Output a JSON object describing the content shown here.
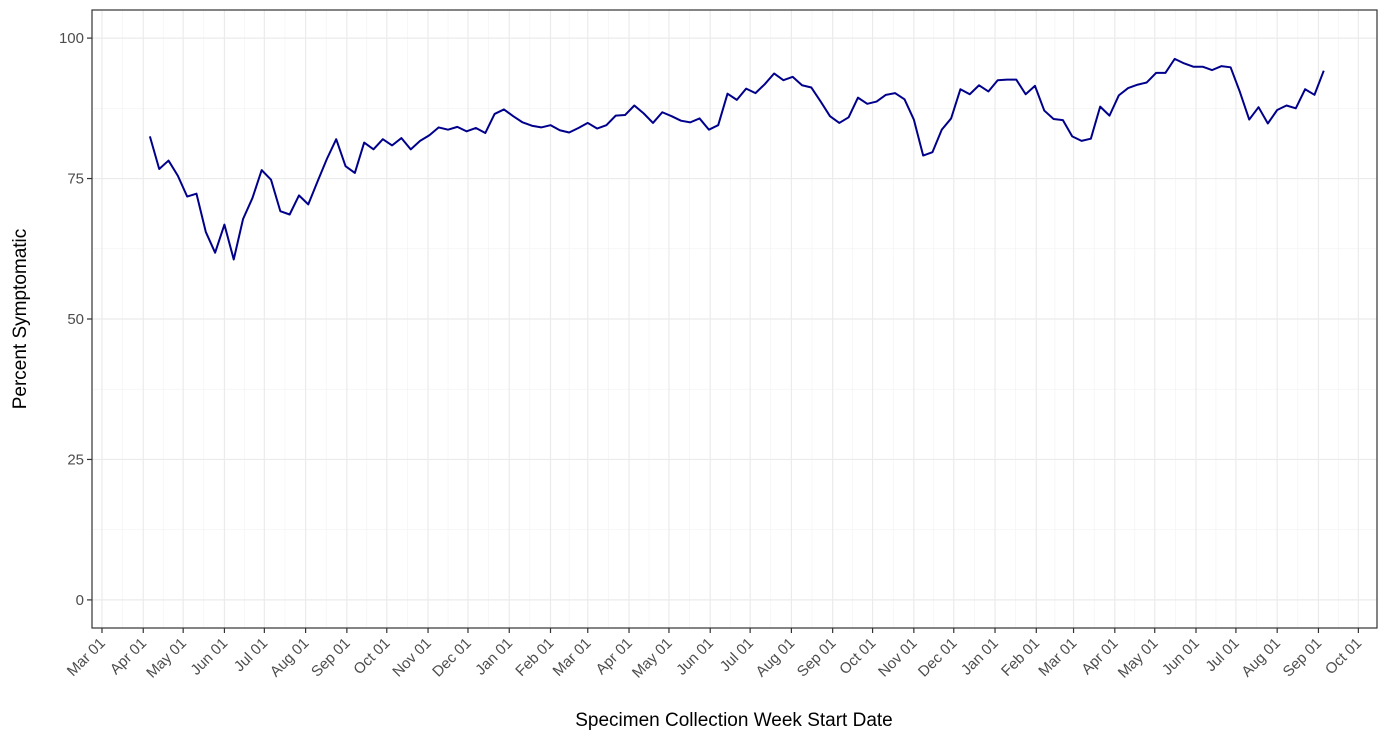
{
  "chart_data": {
    "type": "line",
    "x_label": "Specimen Collection Week Start Date",
    "y_label": "Percent Symptomatic",
    "xlim": [
      -7.5,
      958
    ],
    "ylim": [
      -5,
      105
    ],
    "xticks": [
      {
        "value": 0,
        "label": "Mar 01"
      },
      {
        "value": 31,
        "label": "Apr 01"
      },
      {
        "value": 61,
        "label": "May 01"
      },
      {
        "value": 92,
        "label": "Jun 01"
      },
      {
        "value": 122,
        "label": "Jul 01"
      },
      {
        "value": 153,
        "label": "Aug 01"
      },
      {
        "value": 184,
        "label": "Sep 01"
      },
      {
        "value": 214,
        "label": "Oct 01"
      },
      {
        "value": 245,
        "label": "Nov 01"
      },
      {
        "value": 275,
        "label": "Dec 01"
      },
      {
        "value": 306,
        "label": "Jan 01"
      },
      {
        "value": 337,
        "label": "Feb 01"
      },
      {
        "value": 365,
        "label": "Mar 01"
      },
      {
        "value": 396,
        "label": "Apr 01"
      },
      {
        "value": 426,
        "label": "May 01"
      },
      {
        "value": 457,
        "label": "Jun 01"
      },
      {
        "value": 487,
        "label": "Jul 01"
      },
      {
        "value": 518,
        "label": "Aug 01"
      },
      {
        "value": 549,
        "label": "Sep 01"
      },
      {
        "value": 579,
        "label": "Oct 01"
      },
      {
        "value": 610,
        "label": "Nov 01"
      },
      {
        "value": 640,
        "label": "Dec 01"
      },
      {
        "value": 671,
        "label": "Jan 01"
      },
      {
        "value": 702,
        "label": "Feb 01"
      },
      {
        "value": 730,
        "label": "Mar 01"
      },
      {
        "value": 761,
        "label": "Apr 01"
      },
      {
        "value": 791,
        "label": "May 01"
      },
      {
        "value": 822,
        "label": "Jun 01"
      },
      {
        "value": 852,
        "label": "Jul 01"
      },
      {
        "value": 883,
        "label": "Aug 01"
      },
      {
        "value": 914,
        "label": "Sep 01"
      },
      {
        "value": 944,
        "label": "Oct 01"
      }
    ],
    "yticks": [
      0,
      25,
      50,
      75,
      100
    ],
    "grid": true,
    "x": [
      36,
      43,
      50,
      57,
      64,
      71,
      78,
      85,
      92,
      99,
      106,
      113,
      120,
      127,
      134,
      141,
      148,
      155,
      162,
      169,
      176,
      183,
      190,
      197,
      204,
      211,
      218,
      225,
      232,
      239,
      246,
      253,
      260,
      267,
      274,
      281,
      288,
      295,
      302,
      309,
      316,
      323,
      330,
      337,
      344,
      351,
      358,
      365,
      372,
      379,
      386,
      393,
      400,
      407,
      414,
      421,
      428,
      435,
      442,
      449,
      456,
      463,
      470,
      477,
      484,
      491,
      498,
      505,
      512,
      519,
      526,
      533,
      540,
      547,
      554,
      561,
      568,
      575,
      582,
      589,
      596,
      603,
      610,
      617,
      624,
      631,
      638,
      645,
      652,
      659,
      666,
      673,
      680,
      687,
      694,
      701,
      708,
      715,
      722,
      729,
      736,
      743,
      750,
      757,
      764,
      771,
      778,
      785,
      792,
      799,
      806,
      813,
      820,
      827,
      834,
      841,
      848,
      855,
      862,
      869,
      876,
      883,
      890,
      897,
      904,
      911,
      918
    ],
    "series": [
      {
        "color": "#00008b",
        "values": [
          82.5,
          76.7,
          78.2,
          75.5,
          71.8,
          72.3,
          65.5,
          61.8,
          66.8,
          60.6,
          67.8,
          71.5,
          76.5,
          74.8,
          69.2,
          68.6,
          72,
          70.4,
          74.5,
          78.5,
          82,
          77.2,
          76,
          81.4,
          80.2,
          82,
          80.9,
          82.2,
          80.2,
          81.7,
          82.7,
          84.1,
          83.7,
          84.2,
          83.4,
          84,
          83.1,
          86.5,
          87.3,
          86.1,
          85,
          84.4,
          84.1,
          84.5,
          83.6,
          83.2,
          84,
          84.9,
          83.9,
          84.5,
          86.2,
          86.3,
          88,
          86.6,
          84.9,
          86.8,
          86.1,
          85.3,
          85,
          85.7,
          83.7,
          84.5,
          90.1,
          89,
          91,
          90.2,
          91.8,
          93.7,
          92.5,
          93.1,
          91.6,
          91.2,
          88.7,
          86.1,
          84.9,
          85.9,
          89.4,
          88.3,
          88.7,
          89.9,
          90.2,
          89.1,
          85.5,
          79.1,
          79.7,
          83.7,
          85.7,
          90.9,
          90,
          91.6,
          90.5,
          92.5,
          92.6,
          92.6,
          90,
          91.5,
          87.1,
          85.6,
          85.4,
          82.5,
          81.7,
          82.1,
          87.8,
          86.2,
          89.8,
          91.1,
          91.7,
          92.1,
          93.8,
          93.8,
          96.3,
          95.5,
          94.9,
          94.9,
          94.3,
          95,
          94.8,
          90.4,
          85.5,
          87.7,
          84.8,
          87.2,
          88,
          87.5,
          90.9,
          89.9,
          94.2
        ]
      }
    ]
  }
}
